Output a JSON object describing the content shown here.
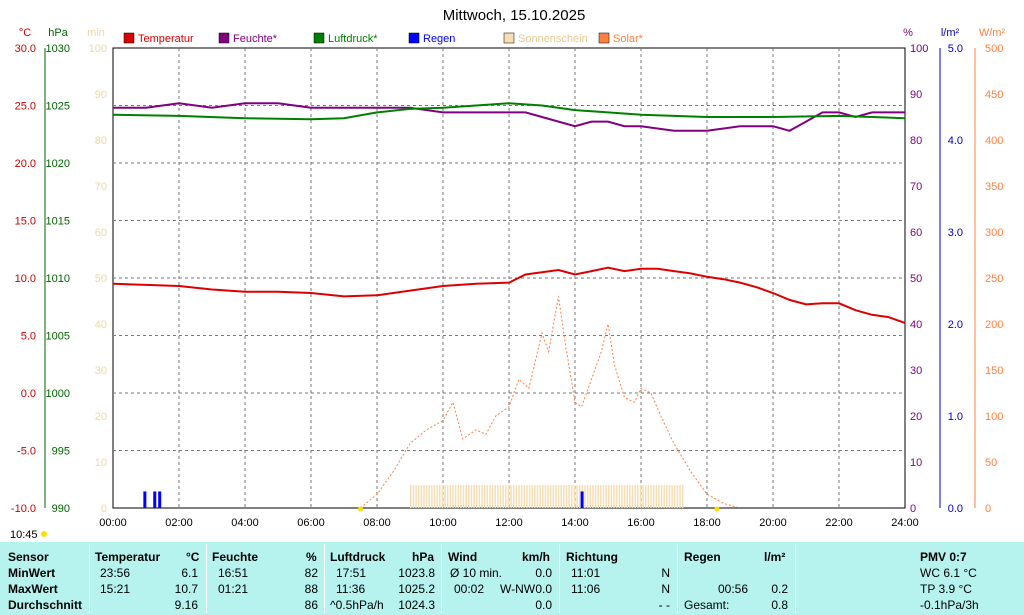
{
  "chart_data": {
    "type": "line",
    "title": "Mittwoch, 15.10.2025",
    "x_ticks": [
      "00:00",
      "02:00",
      "04:00",
      "06:00",
      "08:00",
      "10:00",
      "12:00",
      "14:00",
      "16:00",
      "18:00",
      "20:00",
      "22:00",
      "24:00"
    ],
    "xlim": [
      0,
      24
    ],
    "time_label": "10:45",
    "axes": {
      "temp": {
        "unit": "°C",
        "color": "#cc0000",
        "ylim": [
          -10,
          30
        ],
        "ticks": [
          "30.0",
          "25.0",
          "20.0",
          "15.0",
          "10.0",
          "5.0",
          "0.0",
          "-5.0",
          "-10.0"
        ]
      },
      "press": {
        "unit": "hPa",
        "color": "#006400",
        "ylim": [
          990,
          1030
        ],
        "ticks": [
          "1030",
          "1025",
          "1020",
          "1015",
          "1010",
          "1005",
          "1000",
          "995",
          "990"
        ]
      },
      "sun": {
        "unit": "min",
        "color": "#f0d8a0",
        "ylim": [
          0,
          100
        ],
        "ticks": [
          "100",
          "90",
          "80",
          "70",
          "60",
          "50",
          "40",
          "30",
          "20",
          "10",
          "0"
        ]
      },
      "hum": {
        "unit": "%",
        "color": "#800080",
        "ylim": [
          0,
          100
        ],
        "ticks": [
          "100",
          "90",
          "80",
          "70",
          "60",
          "50",
          "40",
          "30",
          "20",
          "10",
          "0"
        ]
      },
      "rain": {
        "unit": "l/m²",
        "color": "#0000cc",
        "ylim": [
          0,
          5
        ],
        "ticks": [
          "5.0",
          "4.0",
          "3.0",
          "2.0",
          "1.0",
          "0.0"
        ]
      },
      "solar": {
        "unit": "W/m²",
        "color": "#ff8040",
        "ylim": [
          0,
          500
        ],
        "ticks": [
          "500",
          "450",
          "400",
          "350",
          "300",
          "250",
          "200",
          "150",
          "100",
          "50",
          "0"
        ]
      }
    },
    "legend": [
      {
        "name": "Temperatur",
        "color": "#dd0000"
      },
      {
        "name": "Feuchte*",
        "color": "#800080"
      },
      {
        "name": "Luftdruck*",
        "color": "#008000"
      },
      {
        "name": "Regen",
        "color": "#0000ff"
      },
      {
        "name": "Sonnenschein",
        "color": "#f5deb3"
      },
      {
        "name": "Solar*",
        "color": "#ff8040"
      }
    ],
    "series": [
      {
        "name": "Temperatur",
        "axis": "temp",
        "color": "#dd0000",
        "x": [
          0,
          1,
          2,
          3,
          4,
          5,
          6,
          7,
          8,
          9,
          10,
          11,
          12,
          12.5,
          13,
          13.5,
          14,
          14.5,
          15,
          15.5,
          16,
          16.5,
          17,
          17.5,
          18,
          18.5,
          19,
          19.5,
          20,
          20.5,
          21,
          21.5,
          22,
          22.5,
          23,
          23.5,
          24
        ],
        "y": [
          9.5,
          9.4,
          9.3,
          9.0,
          8.8,
          8.8,
          8.7,
          8.4,
          8.5,
          8.9,
          9.3,
          9.5,
          9.6,
          10.3,
          10.5,
          10.7,
          10.3,
          10.6,
          10.9,
          10.6,
          10.8,
          10.8,
          10.6,
          10.4,
          10.1,
          9.9,
          9.6,
          9.2,
          8.7,
          8.1,
          7.7,
          7.8,
          7.8,
          7.2,
          6.8,
          6.6,
          6.1
        ]
      },
      {
        "name": "Feuchte*",
        "axis": "hum",
        "color": "#800080",
        "x": [
          0,
          1,
          2,
          3,
          4,
          5,
          6,
          7,
          8,
          9,
          10,
          11,
          12,
          12.5,
          13,
          13.5,
          14,
          14.5,
          15,
          15.5,
          16,
          17,
          18,
          19,
          19.5,
          20,
          20.5,
          21,
          21.5,
          22,
          22.5,
          23,
          24
        ],
        "y": [
          87,
          87,
          88,
          87,
          88,
          88,
          87,
          87,
          87,
          87,
          86,
          86,
          86,
          86,
          85,
          84,
          83,
          84,
          84,
          83,
          83,
          82,
          82,
          83,
          83,
          83,
          82,
          84,
          86,
          86,
          85,
          86,
          86
        ]
      },
      {
        "name": "Luftdruck*",
        "axis": "press",
        "color": "#008000",
        "x": [
          0,
          2,
          4,
          6,
          7,
          8,
          9,
          10,
          11,
          12,
          13,
          14,
          15,
          16,
          18,
          20,
          22,
          24
        ],
        "y": [
          1024.2,
          1024.1,
          1023.9,
          1023.8,
          1023.9,
          1024.4,
          1024.7,
          1024.8,
          1025.0,
          1025.2,
          1025.0,
          1024.6,
          1024.4,
          1024.2,
          1024.0,
          1024.0,
          1024.1,
          1023.9
        ]
      },
      {
        "name": "Solar*",
        "axis": "solar",
        "color": "#ff8040",
        "x": [
          7.5,
          8.0,
          8.5,
          9.0,
          9.5,
          10.0,
          10.3,
          10.6,
          11.0,
          11.3,
          11.6,
          12.0,
          12.3,
          12.6,
          13.0,
          13.2,
          13.5,
          13.7,
          14.0,
          14.2,
          14.5,
          14.8,
          15.0,
          15.2,
          15.5,
          15.8,
          16.0,
          16.3,
          16.6,
          17.0,
          17.5,
          18.0,
          18.5,
          19.0
        ],
        "y": [
          0,
          15,
          40,
          70,
          85,
          95,
          115,
          75,
          85,
          80,
          100,
          110,
          140,
          130,
          190,
          170,
          230,
          180,
          115,
          110,
          140,
          170,
          200,
          155,
          120,
          115,
          130,
          125,
          100,
          70,
          40,
          15,
          5,
          0
        ]
      }
    ],
    "rain_bars": [
      {
        "x": 0.95,
        "y": 0.18
      },
      {
        "x": 1.25,
        "y": 0.18
      },
      {
        "x": 1.4,
        "y": 0.18
      },
      {
        "x": 14.2,
        "y": 0.18
      }
    ],
    "sunshine": {
      "start": 9.0,
      "end": 17.3,
      "value": 5
    }
  },
  "stats": {
    "sensor_header": "Sensor",
    "row_labels": [
      "MinWert",
      "MaxWert",
      "Durchschnitt"
    ],
    "temperature": {
      "header": "Temperatur",
      "unit": "°C",
      "min_time": "23:56",
      "min": "6.1",
      "max_time": "15:21",
      "max": "10.7",
      "avg": "9.16"
    },
    "humidity": {
      "header": "Feuchte",
      "unit": "%",
      "min_time": "16:51",
      "min": "82",
      "max_time": "01:21",
      "max": "88",
      "avg": "86"
    },
    "pressure": {
      "header": "Luftdruck",
      "unit": "hPa",
      "min_time": "17:51",
      "min": "1023.8",
      "max_time": "11:36",
      "max": "1025.2",
      "avg_label": "^0.5hPa/h",
      "avg": "1024.3"
    },
    "wind": {
      "header": "Wind",
      "unit": "km/h",
      "min_label": "Ø 10 min.",
      "min": "0.0",
      "max_time": "00:02",
      "max_dir": "W-NW",
      "max": "0.0",
      "avg": "0.0"
    },
    "direction": {
      "header": "Richtung",
      "min_time": "11:01",
      "min": "N",
      "max_time": "11:06",
      "max": "N",
      "avg": "- -"
    },
    "rain": {
      "header": "Regen",
      "unit": "l/m²",
      "max_time": "00:56",
      "max": "0.2",
      "total_label": "Gesamt:",
      "total": "0.8"
    },
    "pmv": {
      "header": "PMV 0:7",
      "wc": "WC 6.1 °C",
      "tp": "TP 3.9 °C",
      "trend": "-0.1hPa/3h"
    }
  }
}
